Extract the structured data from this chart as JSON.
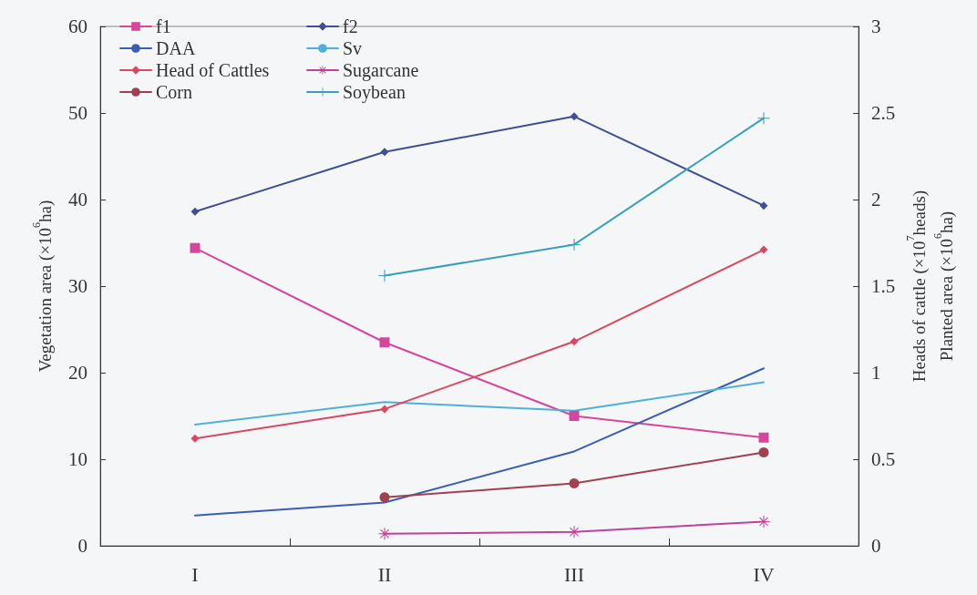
{
  "chart_data": {
    "type": "line",
    "categories": [
      "I",
      "II",
      "III",
      "IV"
    ],
    "ylabel": "Vegetation area (×10$^{6}$ha)",
    "y2label": "Heads of cattle (×10$^{7}$heads)\nPlanted area (×10$^{6}$ha)",
    "ylim": [
      0,
      60
    ],
    "yticks": [
      0,
      10,
      20,
      30,
      40,
      50,
      60
    ],
    "y2lim": [
      0,
      3
    ],
    "y2ticks": [
      0,
      0.5,
      1,
      1.5,
      2,
      2.5,
      3
    ],
    "grid": false,
    "legend": "top left",
    "series": [
      {
        "name": "f1",
        "color": "#d4479c",
        "marker": "square",
        "values": [
          34.4,
          23.5,
          15.0,
          12.5
        ]
      },
      {
        "name": "f2",
        "color": "#3f4f8f",
        "marker": "diamond",
        "values": [
          38.6,
          45.5,
          49.6,
          39.3
        ]
      },
      {
        "name": "DAA",
        "color": "#3a5fb0",
        "marker": "none",
        "values": [
          3.5,
          5.0,
          10.9,
          20.5
        ]
      },
      {
        "name": "Sv",
        "color": "#4fb0d8",
        "marker": "none",
        "values": [
          14.0,
          16.6,
          15.6,
          18.9
        ]
      },
      {
        "name": "Head of Cattles",
        "color": "#d84860",
        "marker": "diamond",
        "axis": "y2",
        "values": [
          0.62,
          0.79,
          1.18,
          1.71
        ]
      },
      {
        "name": "Sugarcane",
        "color": "#c0409a",
        "marker": "star",
        "axis": "y2",
        "values": [
          null,
          0.07,
          0.08,
          0.14
        ]
      },
      {
        "name": "Corn",
        "color": "#a04050",
        "marker": "circle",
        "axis": "y2",
        "values": [
          null,
          0.28,
          0.36,
          0.54
        ]
      },
      {
        "name": "Soybean",
        "color": "#3aa0b8",
        "marker": "cross",
        "axis": "y2",
        "values": [
          null,
          1.56,
          1.74,
          2.47
        ]
      }
    ]
  }
}
